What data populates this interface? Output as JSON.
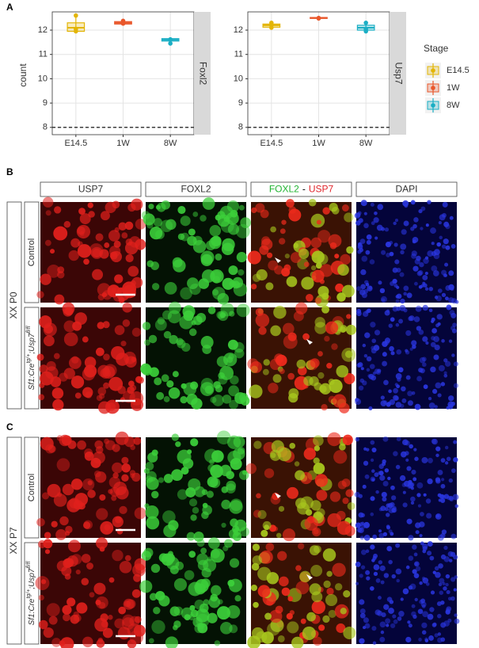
{
  "panel_labels": [
    "A",
    "B",
    "C"
  ],
  "legend": {
    "title": "Stage"
  },
  "chart_data": [
    {
      "type": "box",
      "facet": "Foxl2",
      "y_label": "count",
      "categories": [
        "E14.5",
        "1W",
        "8W"
      ],
      "boxes": [
        {
          "name": "E14.5",
          "color": "#e3b505",
          "min": 11.9,
          "q1": 11.95,
          "median": 12.1,
          "q3": 12.3,
          "max": 12.6,
          "points": [
            12.6,
            12.05,
            11.95
          ]
        },
        {
          "name": "1W",
          "color": "#e9572b",
          "min": 12.25,
          "q1": 12.25,
          "median": 12.3,
          "q3": 12.35,
          "max": 12.38,
          "points": [
            12.38,
            12.3,
            12.27
          ]
        },
        {
          "name": "8W",
          "color": "#1aaec4",
          "min": 11.45,
          "q1": 11.55,
          "median": 11.6,
          "q3": 11.65,
          "max": 11.65,
          "points": [
            11.45,
            11.62,
            11.6
          ]
        }
      ],
      "ylim": [
        7.7,
        12.75
      ],
      "yticks": [
        8,
        9,
        10,
        11,
        12
      ],
      "reference_line": 8,
      "grid": true
    },
    {
      "type": "box",
      "facet": "Usp7",
      "categories": [
        "E14.5",
        "1W",
        "8W"
      ],
      "boxes": [
        {
          "color": "#e3b505",
          "min": 12.1,
          "q1": 12.12,
          "median": 12.2,
          "q3": 12.25,
          "max": 12.3,
          "points": [
            12.3,
            12.2,
            12.1
          ]
        },
        {
          "color": "#e9572b",
          "min": 12.47,
          "q1": 12.48,
          "median": 12.5,
          "q3": 12.52,
          "max": 12.53,
          "points": [
            12.5,
            12.48
          ]
        },
        {
          "color": "#1aaec4",
          "min": 11.95,
          "q1": 12.0,
          "median": 12.1,
          "q3": 12.2,
          "max": 12.3,
          "points": [
            12.3,
            12.05,
            11.95
          ]
        }
      ],
      "ylim": [
        7.7,
        12.75
      ],
      "yticks": [
        8,
        9,
        10,
        11,
        12
      ],
      "reference_line": 8,
      "grid": true
    }
  ],
  "columns": [
    "USP7",
    "FOXL2",
    [
      "FOXL2",
      "-",
      "USP7"
    ],
    "DAPI"
  ],
  "panel_b": {
    "stage": "XX P0",
    "rows": [
      "Control",
      [
        "Sf1:Cre",
        "tg/+",
        ";Usp7",
        "fl/fl"
      ]
    ]
  },
  "panel_c": {
    "stage": "XX P7",
    "rows": [
      "Control",
      [
        "Sf1:Cre",
        "tg/+",
        ";Usp7",
        "fl/fl"
      ]
    ]
  }
}
